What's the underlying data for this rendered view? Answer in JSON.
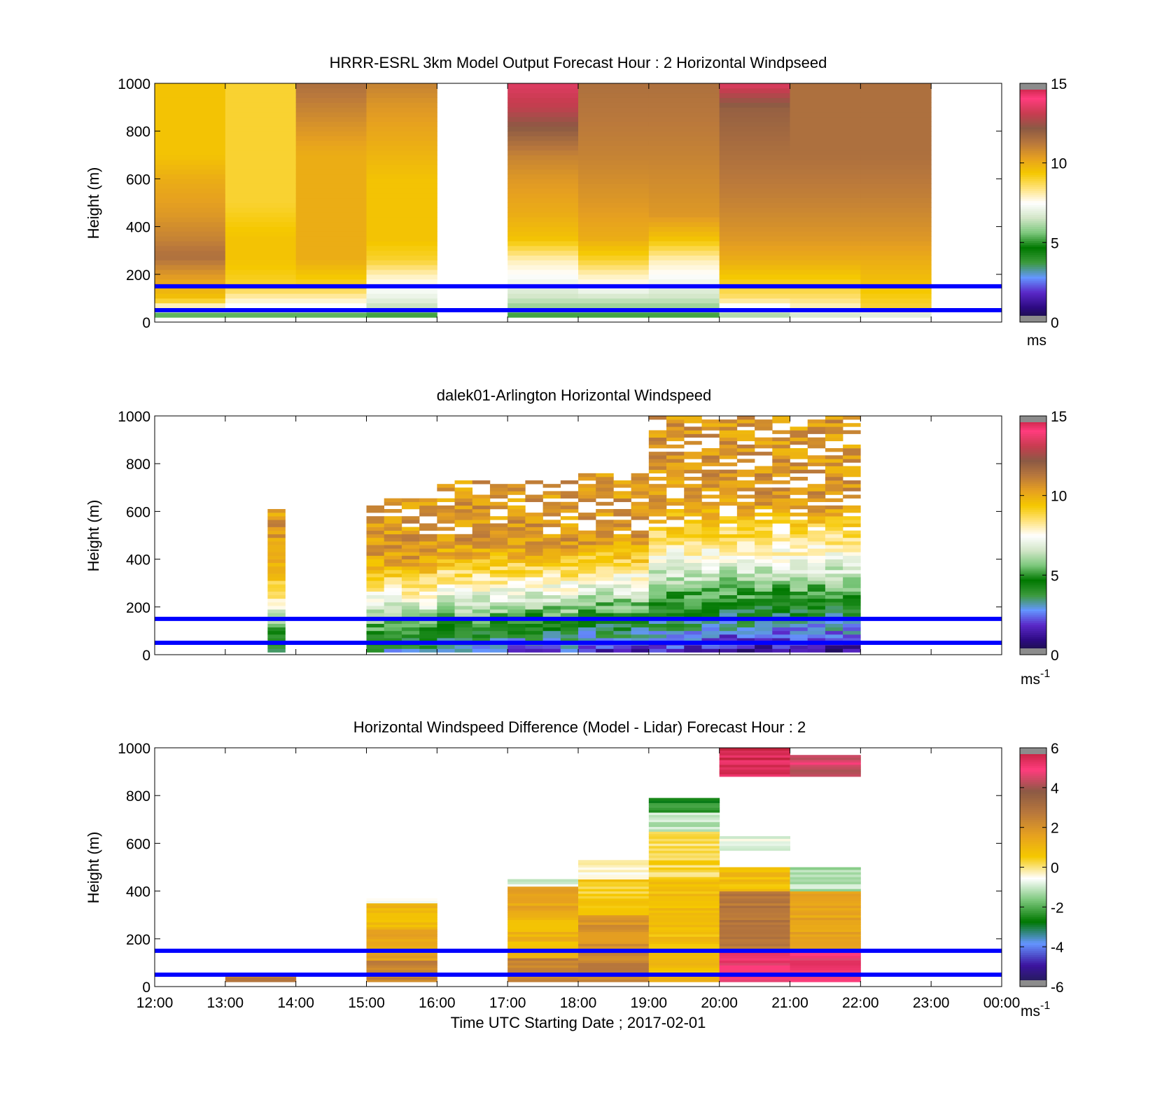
{
  "figure": {
    "xlabel": "Time UTC  Starting Date ; 2017-02-01",
    "x_ticks": [
      "12:00",
      "13:00",
      "14:00",
      "15:00",
      "16:00",
      "17:00",
      "18:00",
      "19:00",
      "20:00",
      "21:00",
      "22:00",
      "23:00",
      "00:00"
    ]
  },
  "colors": {
    "reference_lines": "#0000ff",
    "speed_colormap": [
      "#141432",
      "#2d0a82",
      "#5a28c8",
      "#6496ff",
      "#3c9a3c",
      "#007800",
      "#7dc87d",
      "#d2e6c8",
      "#ffffff",
      "#ffe27a",
      "#f5c800",
      "#e6a020",
      "#b9783c",
      "#8c5a44",
      "#c83c50",
      "#ff3c7d",
      "#b41e32"
    ],
    "diff_colormap": [
      "#1e1e46",
      "#3c14a0",
      "#6496ff",
      "#007800",
      "#7dc87d",
      "#ffffff",
      "#f5c800",
      "#e6a020",
      "#b9783c",
      "#8c5a44",
      "#ff3c7d",
      "#b41e32"
    ]
  },
  "chart_data": [
    {
      "type": "heatmap",
      "title": "HRRR-ESRL 3km Model Output   Forecast Hour : 2 Horizontal Windpseed",
      "ylabel": "Height (m)",
      "xlim": [
        "12:00",
        "00:00"
      ],
      "ylim": [
        0,
        1000
      ],
      "y_ticks": [
        0,
        200,
        400,
        600,
        800,
        1000
      ],
      "colorbar": {
        "min": 0,
        "max": 15,
        "ticks": [
          0,
          5,
          10,
          15
        ],
        "unit": "ms"
      },
      "reference_lines_m": [
        50,
        150
      ],
      "column_width_hours": 1,
      "columns": [
        {
          "start": "12:00",
          "speeds": [
            [
              20,
              5
            ],
            [
              45,
              6
            ],
            [
              70,
              8
            ],
            [
              100,
              9.5
            ],
            [
              150,
              10
            ],
            [
              200,
              10.5
            ],
            [
              275,
              11.5
            ],
            [
              350,
              11
            ],
            [
              450,
              10.5
            ],
            [
              600,
              10
            ],
            [
              700,
              9.5
            ],
            [
              1000,
              9.5
            ]
          ]
        },
        {
          "start": "13:00",
          "speeds": [
            [
              20,
              5
            ],
            [
              45,
              6
            ],
            [
              70,
              7.5
            ],
            [
              100,
              8
            ],
            [
              150,
              9
            ],
            [
              260,
              9.5
            ],
            [
              350,
              9.5
            ],
            [
              500,
              9
            ],
            [
              1000,
              9
            ]
          ]
        },
        {
          "start": "14:00",
          "speeds": [
            [
              20,
              5
            ],
            [
              45,
              6
            ],
            [
              70,
              7.5
            ],
            [
              100,
              8
            ],
            [
              150,
              9
            ],
            [
              260,
              10
            ],
            [
              350,
              10
            ],
            [
              700,
              10
            ],
            [
              900,
              11
            ],
            [
              1000,
              11.5
            ]
          ]
        },
        {
          "start": "15:00",
          "speeds": [
            [
              20,
              5
            ],
            [
              45,
              5.5
            ],
            [
              70,
              6.5
            ],
            [
              100,
              7
            ],
            [
              150,
              7.5
            ],
            [
              200,
              8
            ],
            [
              260,
              9
            ],
            [
              350,
              9.5
            ],
            [
              600,
              9.5
            ],
            [
              900,
              10.5
            ],
            [
              1000,
              11
            ]
          ]
        },
        {
          "start": "17:00",
          "speeds": [
            [
              20,
              5
            ],
            [
              45,
              5.5
            ],
            [
              70,
              6
            ],
            [
              100,
              6.5
            ],
            [
              150,
              7
            ],
            [
              200,
              7.5
            ],
            [
              260,
              8
            ],
            [
              350,
              9.5
            ],
            [
              450,
              10
            ],
            [
              600,
              10.5
            ],
            [
              700,
              11
            ],
            [
              800,
              12
            ],
            [
              900,
              13
            ],
            [
              1000,
              13.5
            ]
          ]
        },
        {
          "start": "18:00",
          "speeds": [
            [
              20,
              5
            ],
            [
              45,
              5.5
            ],
            [
              70,
              6
            ],
            [
              100,
              6.5
            ],
            [
              150,
              7.5
            ],
            [
              200,
              8
            ],
            [
              260,
              9
            ],
            [
              350,
              10
            ],
            [
              500,
              10.5
            ],
            [
              700,
              11
            ],
            [
              1000,
              11.5
            ]
          ]
        },
        {
          "start": "19:00",
          "speeds": [
            [
              20,
              5
            ],
            [
              45,
              5.5
            ],
            [
              70,
              6
            ],
            [
              100,
              6.5
            ],
            [
              150,
              7
            ],
            [
              200,
              7.5
            ],
            [
              260,
              8
            ],
            [
              350,
              9.5
            ],
            [
              450,
              10.5
            ],
            [
              700,
              11
            ],
            [
              1000,
              11.5
            ]
          ]
        },
        {
          "start": "20:00",
          "speeds": [
            [
              20,
              6
            ],
            [
              45,
              6.5
            ],
            [
              70,
              7.5
            ],
            [
              100,
              8.5
            ],
            [
              150,
              9
            ],
            [
              260,
              10
            ],
            [
              350,
              10.5
            ],
            [
              500,
              11
            ],
            [
              700,
              11.5
            ],
            [
              900,
              12
            ],
            [
              1000,
              13.5
            ]
          ]
        },
        {
          "start": "21:00",
          "speeds": [
            [
              20,
              6.5
            ],
            [
              45,
              7
            ],
            [
              70,
              8
            ],
            [
              100,
              8.5
            ],
            [
              150,
              9
            ],
            [
              260,
              10
            ],
            [
              350,
              10.5
            ],
            [
              500,
              11
            ],
            [
              700,
              11.5
            ],
            [
              1000,
              11.5
            ]
          ]
        },
        {
          "start": "22:00",
          "speeds": [
            [
              20,
              6.5
            ],
            [
              45,
              7.5
            ],
            [
              70,
              9
            ],
            [
              150,
              9.5
            ],
            [
              260,
              10
            ],
            [
              350,
              10.5
            ],
            [
              500,
              11
            ],
            [
              700,
              11.5
            ],
            [
              1000,
              11.5
            ]
          ]
        }
      ]
    },
    {
      "type": "heatmap",
      "title": "dalek01-Arlington  Horizontal Windspeed",
      "ylabel": "Height (m)",
      "xlim": [
        "12:00",
        "00:00"
      ],
      "ylim": [
        0,
        1000
      ],
      "y_ticks": [
        0,
        200,
        400,
        600,
        800,
        1000
      ],
      "colorbar": {
        "min": 0,
        "max": 15,
        "ticks": [
          0,
          5,
          10,
          15
        ],
        "unit": "ms",
        "unit_exponent": "-1"
      },
      "reference_lines_m": [
        50,
        150
      ],
      "time_resolution_minutes": 15,
      "profiles": [
        {
          "time": "13:36",
          "top_m": 600,
          "near_surface_speed": 3.5
        },
        {
          "time": "15:00",
          "top_m": 650,
          "near_surface_speed": 3
        },
        {
          "time": "16:00",
          "top_m": 720,
          "near_surface_speed": 2.5
        },
        {
          "time": "17:00",
          "top_m": 720,
          "near_surface_speed": 2
        },
        {
          "time": "18:00",
          "top_m": 760,
          "near_surface_speed": 1.5
        },
        {
          "time": "19:00",
          "top_m": 1000,
          "near_surface_speed": 1.5
        },
        {
          "time": "20:00",
          "top_m": 1000,
          "near_surface_speed": 1
        },
        {
          "time": "21:00",
          "top_m": 1000,
          "near_surface_speed": 1
        },
        {
          "time": "21:45",
          "top_m": 1000,
          "near_surface_speed": 1
        }
      ]
    },
    {
      "type": "heatmap",
      "title": "Horizontal Windspeed Difference (Model - Lidar) Forecast Hour : 2",
      "ylabel": "Height (m)",
      "xlim": [
        "12:00",
        "00:00"
      ],
      "ylim": [
        0,
        1000
      ],
      "y_ticks": [
        0,
        200,
        400,
        600,
        800,
        1000
      ],
      "colorbar": {
        "min": -6,
        "max": 6,
        "ticks": [
          -6,
          -4,
          -2,
          0,
          2,
          4,
          6
        ],
        "unit": "ms",
        "unit_exponent": "-1"
      },
      "reference_lines_m": [
        50,
        150
      ],
      "column_width_hours": 1,
      "columns": [
        {
          "start": "13:00",
          "bands": [
            [
              20,
              50,
              2.5
            ]
          ]
        },
        {
          "start": "15:00",
          "bands": [
            [
              20,
              110,
              2.5
            ],
            [
              110,
              240,
              1.5
            ],
            [
              240,
              350,
              1
            ],
            [
              350,
              370,
              -0.5
            ]
          ]
        },
        {
          "start": "17:00",
          "bands": [
            [
              20,
              120,
              2.5
            ],
            [
              120,
              300,
              1
            ],
            [
              300,
              420,
              1.5
            ],
            [
              420,
              450,
              -1
            ]
          ]
        },
        {
          "start": "18:00",
          "bands": [
            [
              20,
              150,
              2.5
            ],
            [
              150,
              300,
              2
            ],
            [
              300,
              450,
              0.5
            ],
            [
              450,
              530,
              -0.3
            ]
          ]
        },
        {
          "start": "19:00",
          "bands": [
            [
              20,
              150,
              1
            ],
            [
              150,
              450,
              0.8
            ],
            [
              450,
              650,
              0.2
            ],
            [
              650,
              730,
              -1.2
            ],
            [
              730,
              790,
              -2.5
            ]
          ]
        },
        {
          "start": "20:00",
          "bands": [
            [
              20,
              150,
              5
            ],
            [
              150,
              400,
              2.8
            ],
            [
              400,
              500,
              0.8
            ],
            [
              570,
              630,
              -0.8
            ],
            [
              880,
              1000,
              5.5
            ]
          ]
        },
        {
          "start": "21:00",
          "bands": [
            [
              20,
              150,
              5
            ],
            [
              150,
              400,
              1.5
            ],
            [
              400,
              500,
              -1.2
            ],
            [
              880,
              970,
              4.5
            ]
          ]
        }
      ]
    }
  ]
}
